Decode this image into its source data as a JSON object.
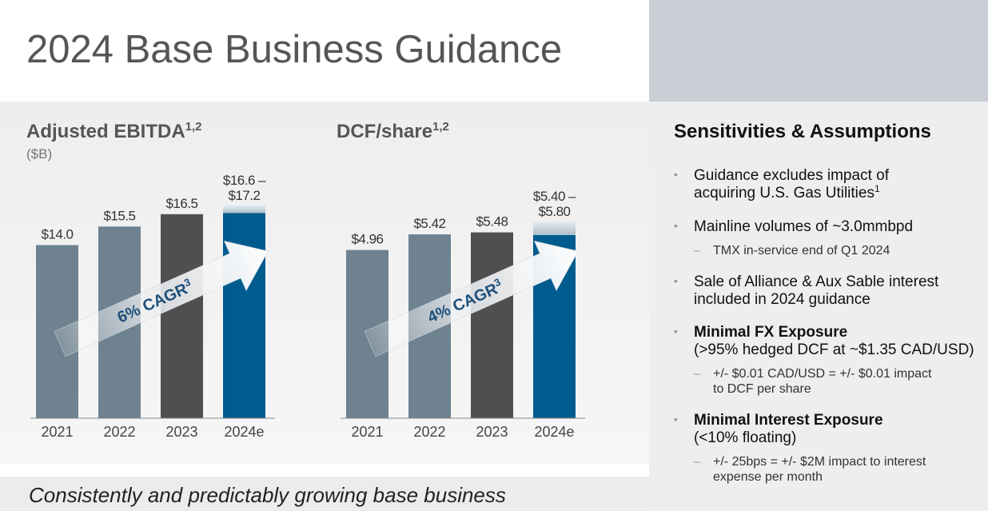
{
  "title": "2024 Base Business Guidance",
  "chart_data": [
    {
      "type": "bar",
      "title": "Adjusted EBITDA",
      "title_sup": "1,2",
      "subtitle": "($B)",
      "categories": [
        "2021",
        "2022",
        "2023",
        "2024e"
      ],
      "values": [
        14.0,
        15.5,
        16.5,
        16.6
      ],
      "value_labels": [
        "$14.0",
        "$15.5",
        "$16.5",
        "$16.6 –"
      ],
      "range_high": [
        null,
        null,
        null,
        17.2
      ],
      "range_high_labels": [
        null,
        null,
        null,
        "$17.2"
      ],
      "colors": [
        "#6e8290",
        "#6e8290",
        "#4f4f4f",
        "#005b8f"
      ],
      "annotation": "6% CAGR",
      "annotation_sup": "3"
    },
    {
      "type": "bar",
      "title": "DCF/share",
      "title_sup": "1,2",
      "categories": [
        "2021",
        "2022",
        "2023",
        "2024e"
      ],
      "values": [
        4.96,
        5.42,
        5.48,
        5.4
      ],
      "value_labels": [
        "$4.96",
        "$5.42",
        "$5.48",
        "$5.40 –"
      ],
      "range_high": [
        null,
        null,
        null,
        5.8
      ],
      "range_high_labels": [
        null,
        null,
        null,
        "$5.80"
      ],
      "colors": [
        "#6e8290",
        "#6e8290",
        "#4f4f4f",
        "#005b8f"
      ],
      "annotation": "4% CAGR",
      "annotation_sup": "3"
    }
  ],
  "sensitivities": {
    "heading": "Sensitivities & Assumptions",
    "items": [
      {
        "lines": [
          "Guidance excludes impact of",
          "acquiring U.S. Gas Utilities"
        ],
        "sup": "1"
      },
      {
        "lines": [
          "Mainline volumes of ~3.0mmbpd"
        ],
        "subs": [
          [
            "TMX in-service end of Q1 2024"
          ]
        ]
      },
      {
        "lines": [
          "Sale of Alliance & Aux Sable interest",
          "included in 2024 guidance"
        ]
      },
      {
        "heading": "Minimal FX Exposure",
        "lines": [
          "(>95% hedged DCF at ~$1.35 CAD/USD)"
        ],
        "subs": [
          [
            "+/- $0.01 CAD/USD = +/- $0.01 impact",
            "to DCF per share"
          ]
        ]
      },
      {
        "heading": "Minimal Interest Exposure",
        "lines": [
          "(<10% floating)"
        ],
        "subs": [
          [
            "+/- 25bps = +/- $2M impact to interest",
            "expense per month"
          ]
        ]
      }
    ]
  },
  "footer": "Consistently and predictably growing base business"
}
